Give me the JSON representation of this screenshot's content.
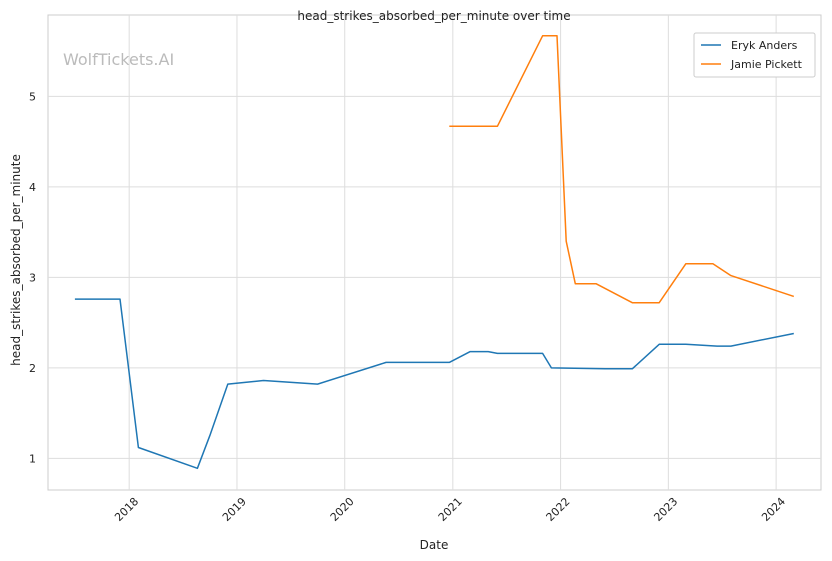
{
  "chart_data": {
    "type": "line",
    "title": "head_strikes_absorbed_per_minute over time",
    "xlabel": "Date",
    "ylabel": "head_strikes_absorbed_per_minute",
    "watermark": "WolfTickets.AI",
    "xlim": [
      "2017-04-01",
      "2024-06-01"
    ],
    "ylim": [
      0.65,
      5.9
    ],
    "x_ticks": [
      "2018-01-01",
      "2019-01-01",
      "2020-01-01",
      "2021-01-01",
      "2022-01-01",
      "2023-01-01",
      "2024-01-01"
    ],
    "x_tick_labels": [
      "2018",
      "2019",
      "2020",
      "2021",
      "2022",
      "2023",
      "2024"
    ],
    "y_ticks": [
      1,
      2,
      3,
      4,
      5
    ],
    "y_tick_labels": [
      "1",
      "2",
      "3",
      "4",
      "5"
    ],
    "grid": true,
    "legend_position": "top-right",
    "series": [
      {
        "name": "Eryk Anders",
        "color": "#1f77b4",
        "points": [
          [
            "2017-07-01",
            2.76
          ],
          [
            "2017-12-01",
            2.76
          ],
          [
            "2018-02-01",
            1.12
          ],
          [
            "2018-08-20",
            0.89
          ],
          [
            "2018-10-01",
            1.25
          ],
          [
            "2018-12-01",
            1.82
          ],
          [
            "2019-04-01",
            1.86
          ],
          [
            "2019-10-01",
            1.82
          ],
          [
            "2020-05-20",
            2.06
          ],
          [
            "2020-12-20",
            2.06
          ],
          [
            "2021-03-01",
            2.18
          ],
          [
            "2021-05-01",
            2.18
          ],
          [
            "2021-06-01",
            2.16
          ],
          [
            "2021-11-01",
            2.16
          ],
          [
            "2021-12-01",
            2.0
          ],
          [
            "2022-06-01",
            1.99
          ],
          [
            "2022-09-01",
            1.99
          ],
          [
            "2022-12-01",
            2.26
          ],
          [
            "2023-03-01",
            2.26
          ],
          [
            "2023-06-15",
            2.24
          ],
          [
            "2023-08-01",
            2.24
          ],
          [
            "2024-03-01",
            2.38
          ]
        ]
      },
      {
        "name": "Jamie Pickett",
        "color": "#ff7f0e",
        "points": [
          [
            "2020-12-20",
            4.67
          ],
          [
            "2021-06-01",
            4.67
          ],
          [
            "2021-11-01",
            5.67
          ],
          [
            "2021-12-20",
            5.67
          ],
          [
            "2022-01-20",
            3.4
          ],
          [
            "2022-02-20",
            2.93
          ],
          [
            "2022-05-01",
            2.93
          ],
          [
            "2022-09-01",
            2.72
          ],
          [
            "2022-12-01",
            2.72
          ],
          [
            "2023-03-01",
            3.15
          ],
          [
            "2023-06-01",
            3.15
          ],
          [
            "2023-08-01",
            3.02
          ],
          [
            "2024-03-01",
            2.79
          ]
        ]
      }
    ]
  }
}
